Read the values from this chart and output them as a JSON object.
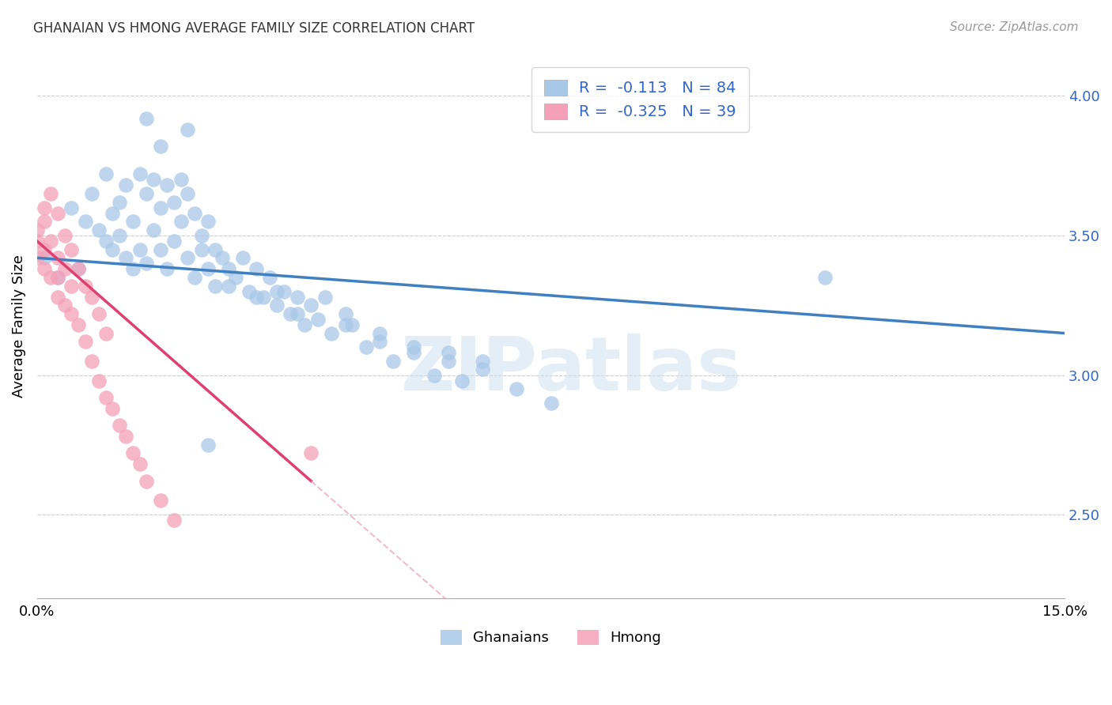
{
  "title": "GHANAIAN VS HMONG AVERAGE FAMILY SIZE CORRELATION CHART",
  "source": "Source: ZipAtlas.com",
  "ylabel": "Average Family Size",
  "right_yticks": [
    2.5,
    3.0,
    3.5,
    4.0
  ],
  "legend_blue_r": "-0.113",
  "legend_blue_n": "84",
  "legend_pink_r": "-0.325",
  "legend_pink_n": "39",
  "watermark": "ZIPatlas",
  "blue_color": "#a8c8e8",
  "pink_color": "#f4a0b8",
  "trend_blue": "#4080c0",
  "trend_pink": "#e04070",
  "trend_pink_dashed": "#e8a0b8",
  "xlim": [
    0.0,
    0.15
  ],
  "ylim": [
    2.2,
    4.15
  ],
  "ghanaian_x": [
    0.001,
    0.003,
    0.005,
    0.006,
    0.007,
    0.008,
    0.009,
    0.01,
    0.01,
    0.011,
    0.011,
    0.012,
    0.012,
    0.013,
    0.013,
    0.014,
    0.014,
    0.015,
    0.015,
    0.016,
    0.016,
    0.017,
    0.017,
    0.018,
    0.018,
    0.019,
    0.019,
    0.02,
    0.02,
    0.021,
    0.021,
    0.022,
    0.022,
    0.023,
    0.023,
    0.024,
    0.024,
    0.025,
    0.025,
    0.026,
    0.026,
    0.027,
    0.028,
    0.029,
    0.03,
    0.031,
    0.032,
    0.033,
    0.034,
    0.035,
    0.036,
    0.037,
    0.038,
    0.039,
    0.04,
    0.041,
    0.042,
    0.043,
    0.045,
    0.046,
    0.048,
    0.05,
    0.052,
    0.055,
    0.058,
    0.06,
    0.062,
    0.065,
    0.07,
    0.075,
    0.028,
    0.032,
    0.038,
    0.05,
    0.055,
    0.065,
    0.115,
    0.035,
    0.045,
    0.06,
    0.022,
    0.018,
    0.016,
    0.025
  ],
  "ghanaian_y": [
    3.42,
    3.35,
    3.6,
    3.38,
    3.55,
    3.65,
    3.52,
    3.72,
    3.48,
    3.58,
    3.45,
    3.62,
    3.5,
    3.68,
    3.42,
    3.55,
    3.38,
    3.72,
    3.45,
    3.65,
    3.4,
    3.7,
    3.52,
    3.6,
    3.45,
    3.68,
    3.38,
    3.62,
    3.48,
    3.7,
    3.55,
    3.65,
    3.42,
    3.58,
    3.35,
    3.5,
    3.45,
    3.55,
    3.38,
    3.45,
    3.32,
    3.42,
    3.38,
    3.35,
    3.42,
    3.3,
    3.38,
    3.28,
    3.35,
    3.25,
    3.3,
    3.22,
    3.28,
    3.18,
    3.25,
    3.2,
    3.28,
    3.15,
    3.22,
    3.18,
    3.1,
    3.12,
    3.05,
    3.08,
    3.0,
    3.05,
    2.98,
    3.02,
    2.95,
    2.9,
    3.32,
    3.28,
    3.22,
    3.15,
    3.1,
    3.05,
    3.35,
    3.3,
    3.18,
    3.08,
    3.88,
    3.82,
    3.92,
    2.75
  ],
  "hmong_x": [
    0.0,
    0.0,
    0.0,
    0.001,
    0.001,
    0.001,
    0.001,
    0.002,
    0.002,
    0.002,
    0.003,
    0.003,
    0.003,
    0.003,
    0.004,
    0.004,
    0.004,
    0.005,
    0.005,
    0.005,
    0.006,
    0.006,
    0.007,
    0.007,
    0.008,
    0.008,
    0.009,
    0.009,
    0.01,
    0.01,
    0.011,
    0.012,
    0.013,
    0.014,
    0.015,
    0.016,
    0.018,
    0.02,
    0.04
  ],
  "hmong_y": [
    3.52,
    3.48,
    3.42,
    3.55,
    3.45,
    3.38,
    3.6,
    3.65,
    3.48,
    3.35,
    3.58,
    3.42,
    3.35,
    3.28,
    3.5,
    3.38,
    3.25,
    3.45,
    3.32,
    3.22,
    3.38,
    3.18,
    3.32,
    3.12,
    3.28,
    3.05,
    3.22,
    2.98,
    3.15,
    2.92,
    2.88,
    2.82,
    2.78,
    2.72,
    2.68,
    2.62,
    2.55,
    2.48,
    2.72
  ]
}
